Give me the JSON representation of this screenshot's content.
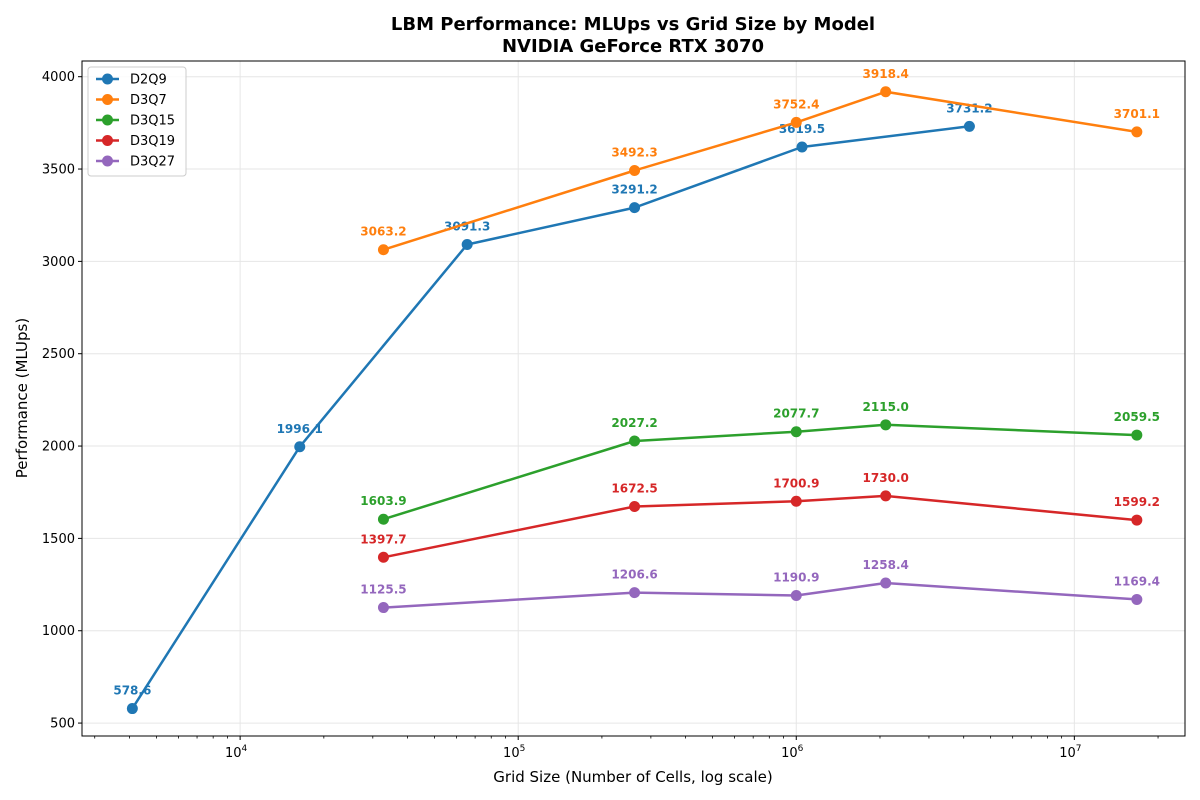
{
  "chart_data": {
    "type": "line",
    "title": "LBM Performance: MLUps vs Grid Size by Model",
    "subtitle": "NVIDIA GeForce RTX 3070",
    "xlabel": "Grid Size (Number of Cells, log scale)",
    "ylabel": "Performance (MLUps)",
    "xscale": "log",
    "xlim": [
      2700,
      25000000
    ],
    "ylim": [
      430,
      4085
    ],
    "xticks": [
      {
        "value": 10000,
        "base": "10",
        "exp": "4"
      },
      {
        "value": 100000,
        "base": "10",
        "exp": "5"
      },
      {
        "value": 1000000,
        "base": "10",
        "exp": "6"
      },
      {
        "value": 10000000,
        "base": "10",
        "exp": "7"
      }
    ],
    "yticks": [
      500,
      1000,
      1500,
      2000,
      2500,
      3000,
      3500,
      4000
    ],
    "grid": true,
    "legend_position": "top-left",
    "series": [
      {
        "name": "D2Q9",
        "color": "#1f77b4",
        "x": [
          4096,
          16384,
          65536,
          262144,
          1048576,
          4194304
        ],
        "y": [
          578.6,
          1996.1,
          3091.3,
          3291.2,
          3619.5,
          3731.2
        ],
        "labels": [
          "578.6",
          "1996.1",
          "3091.3",
          "3291.2",
          "3619.5",
          "3731.2"
        ]
      },
      {
        "name": "D3Q7",
        "color": "#ff7f0e",
        "x": [
          32768,
          262144,
          1000000,
          2097152,
          16777216
        ],
        "y": [
          3063.2,
          3492.3,
          3752.4,
          3918.4,
          3701.1
        ],
        "labels": [
          "3063.2",
          "3492.3",
          "3752.4",
          "3918.4",
          "3701.1"
        ]
      },
      {
        "name": "D3Q15",
        "color": "#2ca02c",
        "x": [
          32768,
          262144,
          1000000,
          2097152,
          16777216
        ],
        "y": [
          1603.9,
          2027.2,
          2077.7,
          2115.0,
          2059.5
        ],
        "labels": [
          "1603.9",
          "2027.2",
          "2077.7",
          "2115.0",
          "2059.5"
        ]
      },
      {
        "name": "D3Q19",
        "color": "#d62728",
        "x": [
          32768,
          262144,
          1000000,
          2097152,
          16777216
        ],
        "y": [
          1397.7,
          1672.5,
          1700.9,
          1730.0,
          1599.2
        ],
        "labels": [
          "1397.7",
          "1672.5",
          "1700.9",
          "1730.0",
          "1599.2"
        ]
      },
      {
        "name": "D3Q27",
        "color": "#9467bd",
        "x": [
          32768,
          262144,
          1000000,
          2097152,
          16777216
        ],
        "y": [
          1125.5,
          1206.6,
          1190.9,
          1258.4,
          1169.4
        ],
        "labels": [
          "1125.5",
          "1206.6",
          "1190.9",
          "1258.4",
          "1169.4"
        ]
      }
    ]
  }
}
